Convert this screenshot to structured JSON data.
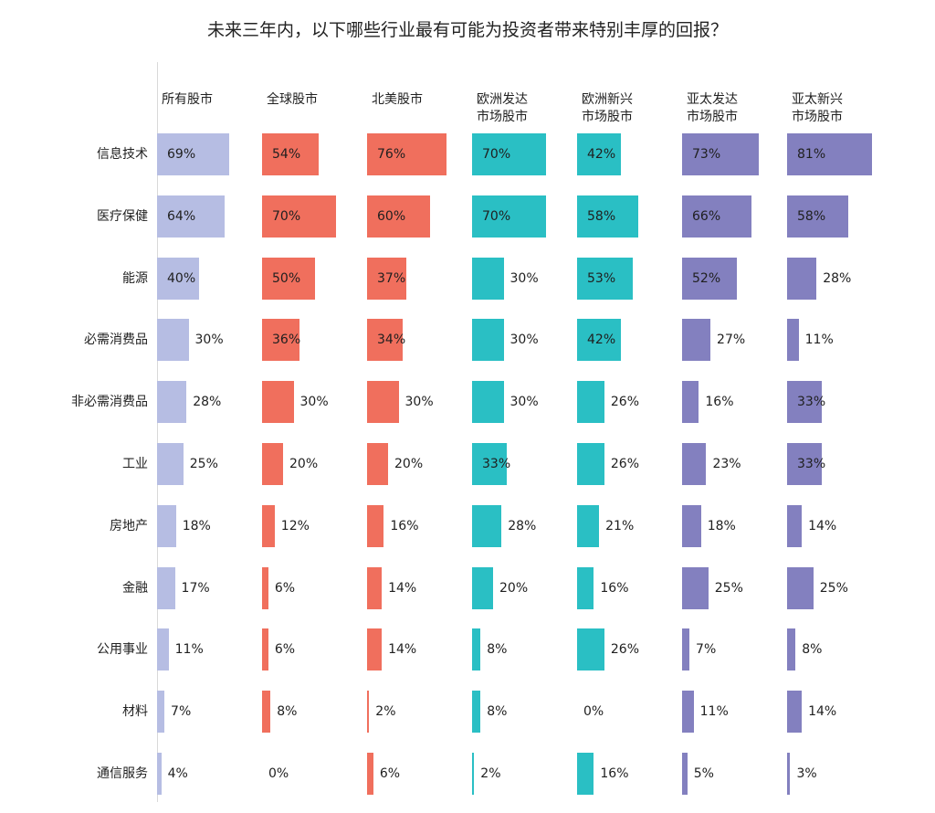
{
  "title": "未来三年内，以下哪些行业最有可能为投资者带来特别丰厚的回报？",
  "chart_data": {
    "type": "bar",
    "title": "未来三年内，以下哪些行业最有可能为投资者带来特别丰厚的回报？",
    "categories": [
      "信息技术",
      "医疗保健",
      "能源",
      "必需消费品",
      "非必需消费品",
      "工业",
      "房地产",
      "金融",
      "公用事业",
      "材料",
      "通信服务"
    ],
    "series": [
      {
        "name": "所有股市",
        "color": "#b6bde3",
        "values": [
          69,
          64,
          40,
          30,
          28,
          25,
          18,
          17,
          11,
          7,
          4
        ]
      },
      {
        "name": "全球股市",
        "color": "#f06f5d",
        "values": [
          54,
          70,
          50,
          36,
          30,
          20,
          12,
          6,
          6,
          8,
          0
        ]
      },
      {
        "name": "北美股市",
        "color": "#f06f5d",
        "values": [
          76,
          60,
          37,
          34,
          30,
          20,
          16,
          14,
          14,
          2,
          6
        ]
      },
      {
        "name": "欧洲发达\n市场股市",
        "color": "#2abfc4",
        "values": [
          70,
          70,
          30,
          30,
          30,
          33,
          28,
          20,
          8,
          8,
          2
        ]
      },
      {
        "name": "欧洲新兴\n市场股市",
        "color": "#2abfc4",
        "values": [
          42,
          58,
          53,
          42,
          26,
          26,
          21,
          16,
          26,
          0,
          16
        ]
      },
      {
        "name": "亚太发达\n市场股市",
        "color": "#8380bf",
        "values": [
          73,
          66,
          52,
          27,
          16,
          23,
          18,
          25,
          7,
          11,
          5
        ]
      },
      {
        "name": "亚太新兴\n市场股市",
        "color": "#8380bf",
        "values": [
          81,
          58,
          28,
          11,
          33,
          33,
          14,
          25,
          8,
          14,
          3
        ]
      }
    ],
    "value_suffix": "%"
  }
}
